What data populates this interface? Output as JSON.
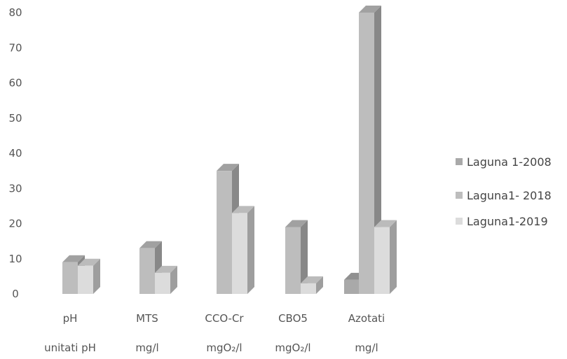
{
  "chart_data": {
    "type": "bar",
    "categories": [
      "pH",
      "MTS",
      "CCO-Cr",
      "CBO5",
      "Azotati"
    ],
    "units": [
      "unitati pH",
      "mg/l",
      "mgO₂/l",
      "mgO₂/l",
      "mg/l"
    ],
    "series": [
      {
        "name": "Laguna 1-2008",
        "values": [
          0,
          0,
          0,
          0,
          4
        ],
        "color": "#a9a9a9"
      },
      {
        "name": "Laguna1- 2018",
        "values": [
          9,
          13,
          35,
          19,
          80
        ],
        "color": "#bdbdbd"
      },
      {
        "name": "Laguna1-2019",
        "values": [
          8,
          6,
          23,
          3,
          19
        ],
        "color": "#dcdcdc"
      }
    ],
    "yticks": [
      "0",
      "10",
      "20",
      "30",
      "40",
      "50",
      "60",
      "70",
      "80"
    ],
    "ylim": [
      0,
      80
    ],
    "grid": false,
    "legend_position": "right"
  }
}
